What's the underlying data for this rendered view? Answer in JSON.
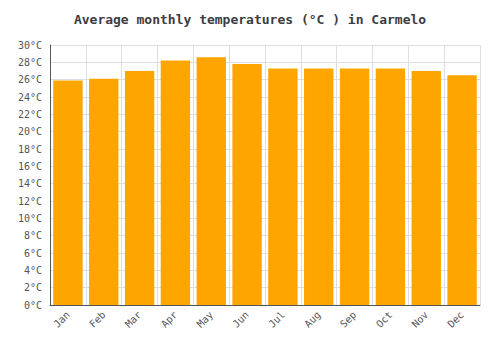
{
  "chart_data": {
    "type": "bar",
    "title": "Average monthly temperatures (°C ) in Carmelo",
    "categories": [
      "Jan",
      "Feb",
      "Mar",
      "Apr",
      "May",
      "Jun",
      "Jul",
      "Aug",
      "Sep",
      "Oct",
      "Nov",
      "Dec"
    ],
    "values": [
      25.9,
      26.1,
      27.0,
      28.2,
      28.6,
      27.8,
      27.3,
      27.3,
      27.3,
      27.3,
      27.0,
      26.5
    ],
    "color": "#FFA500",
    "ylim": [
      0,
      30
    ],
    "yticks": [
      {
        "value": 0,
        "label": "0°C"
      },
      {
        "value": 2,
        "label": "2°C"
      },
      {
        "value": 4,
        "label": "4°C"
      },
      {
        "value": 6,
        "label": "6°C"
      },
      {
        "value": 8,
        "label": "8°C"
      },
      {
        "value": 10,
        "label": "10°C"
      },
      {
        "value": 12,
        "label": "12°C"
      },
      {
        "value": 14,
        "label": "14°C"
      },
      {
        "value": 16,
        "label": "16°C"
      },
      {
        "value": 18,
        "label": "18°C"
      },
      {
        "value": 20,
        "label": "20°C"
      },
      {
        "value": 22,
        "label": "22°C"
      },
      {
        "value": 24,
        "label": "24°C"
      },
      {
        "value": 26,
        "label": "26°C"
      },
      {
        "value": 28,
        "label": "28°C"
      },
      {
        "value": 30,
        "label": "30°C"
      }
    ],
    "grid": true
  }
}
